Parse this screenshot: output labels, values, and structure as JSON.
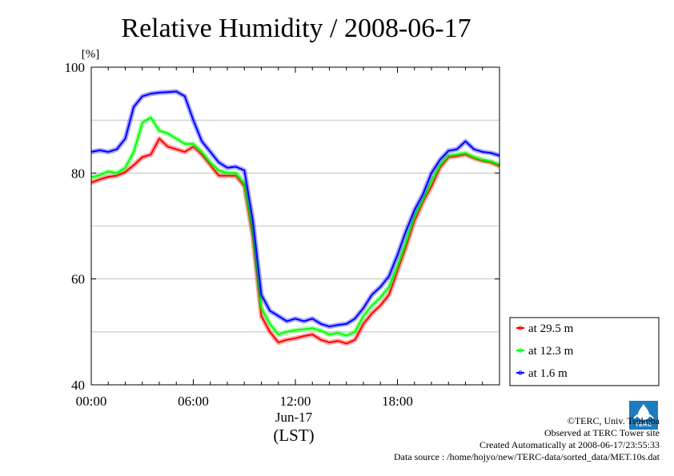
{
  "chart_data": {
    "type": "line",
    "title": "Relative Humidity / 2008-06-17",
    "ylabel_unit": "[%]",
    "xlabel_date": "Jun-17",
    "xlabel_zone": "(LST)",
    "ylim": [
      40,
      100
    ],
    "xlim_hours": [
      0,
      24
    ],
    "yticks": [
      40,
      60,
      80,
      100
    ],
    "xticks": [
      {
        "hour": 0,
        "label": "00:00"
      },
      {
        "hour": 6,
        "label": "06:00"
      },
      {
        "hour": 12,
        "label": "12:00"
      },
      {
        "hour": 18,
        "label": "18:00"
      }
    ],
    "grid": true,
    "legend_position": "right-bottom",
    "x_hours": [
      0,
      0.5,
      1,
      1.5,
      2,
      2.5,
      3,
      3.5,
      4,
      4.5,
      5,
      5.5,
      6,
      6.5,
      7,
      7.5,
      8,
      8.5,
      9,
      9.5,
      10,
      10.5,
      11,
      11.5,
      12,
      12.5,
      13,
      13.5,
      14,
      14.5,
      15,
      15.5,
      16,
      16.5,
      17,
      17.5,
      18,
      18.5,
      19,
      19.5,
      20,
      20.5,
      21,
      21.5,
      22,
      22.5,
      23,
      23.5,
      24
    ],
    "series": [
      {
        "name": "at 29.5 m",
        "color": "#ff0000",
        "values": [
          78.2,
          78.8,
          79.3,
          79.5,
          80.2,
          81.5,
          83.0,
          83.5,
          86.5,
          85.0,
          84.5,
          84.0,
          85.0,
          83.5,
          81.5,
          79.5,
          79.5,
          79.5,
          77.5,
          68.0,
          53.0,
          50.0,
          48.0,
          48.5,
          48.8,
          49.2,
          49.5,
          48.5,
          48.0,
          48.3,
          47.8,
          48.5,
          51.5,
          53.5,
          55.0,
          57.0,
          61.5,
          66.0,
          71.0,
          74.5,
          77.5,
          81.0,
          83.0,
          83.2,
          83.5,
          82.8,
          82.3,
          82.0,
          81.3
        ]
      },
      {
        "name": "at 12.3 m",
        "color": "#00ff00",
        "values": [
          79.2,
          79.6,
          80.3,
          80.0,
          81.0,
          84.0,
          89.5,
          90.5,
          88.0,
          87.5,
          86.5,
          85.5,
          85.5,
          84.0,
          82.0,
          80.5,
          80.0,
          80.0,
          78.0,
          69.0,
          54.5,
          51.5,
          49.5,
          50.0,
          50.3,
          50.5,
          50.7,
          50.2,
          49.5,
          49.8,
          49.3,
          50.0,
          53.0,
          55.0,
          56.5,
          58.5,
          62.5,
          67.0,
          72.0,
          75.0,
          78.5,
          81.5,
          83.3,
          83.5,
          83.8,
          83.0,
          82.5,
          82.2,
          81.6
        ]
      },
      {
        "name": "at 1.6 m",
        "color": "#0000ff",
        "values": [
          84.0,
          84.3,
          84.0,
          84.5,
          86.5,
          92.5,
          94.5,
          95.0,
          95.2,
          95.3,
          95.4,
          94.5,
          90.0,
          86.0,
          84.0,
          82.0,
          81.0,
          81.2,
          80.5,
          71.0,
          57.0,
          54.0,
          53.0,
          52.0,
          52.5,
          52.0,
          52.5,
          51.5,
          51.0,
          51.3,
          51.5,
          52.5,
          54.5,
          57.0,
          58.5,
          60.5,
          64.5,
          69.0,
          73.0,
          76.0,
          80.0,
          82.5,
          84.2,
          84.5,
          86.0,
          84.5,
          84.0,
          83.8,
          83.3
        ]
      }
    ]
  },
  "footer": {
    "credit": "©TERC, Univ. Tsukuba",
    "observed": "Observed at TERC Tower site",
    "created": "Created Automatically at 2008-06-17/23:55:33",
    "source": "Data source : /home/hojyo/new/TERC-data/sorted_data/MET.10s.dat",
    "logo_text": "TERC"
  }
}
